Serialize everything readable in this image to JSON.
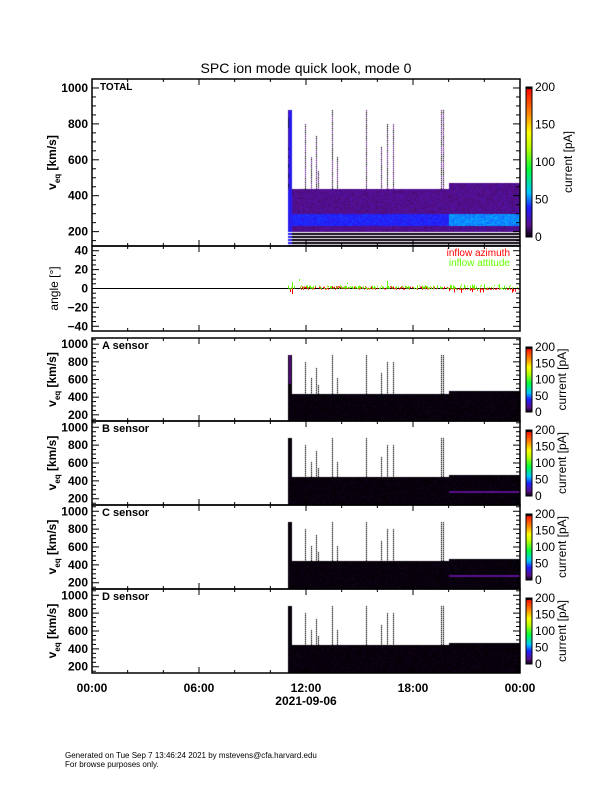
{
  "chart_data": {
    "type": "heatmap",
    "title": "SPC ion mode quick look, mode 0",
    "xaxis": {
      "range_hours": [
        0,
        24
      ],
      "tick_labels": [
        "00:00",
        "06:00",
        "12:00",
        "18:00",
        "00:00"
      ],
      "tick_hours": [
        0,
        6,
        12,
        18,
        24
      ],
      "label": "2021-09-06"
    },
    "data_start_hour": 11.0,
    "spikes": [
      {
        "t": 11.0,
        "vmax": 875
      },
      {
        "t": 11.94,
        "vmax": 800
      },
      {
        "t": 12.28,
        "vmax": 615
      },
      {
        "t": 12.56,
        "vmax": 735
      },
      {
        "t": 12.67,
        "vmax": 540
      },
      {
        "t": 13.46,
        "vmax": 875
      },
      {
        "t": 13.74,
        "vmax": 615
      },
      {
        "t": 15.36,
        "vmax": 875
      },
      {
        "t": 16.2,
        "vmax": 670
      },
      {
        "t": 16.54,
        "vmax": 800
      },
      {
        "t": 16.88,
        "vmax": 800
      },
      {
        "t": 19.57,
        "vmax": 875
      },
      {
        "t": 19.68,
        "vmax": 875
      }
    ],
    "colorbar": {
      "label": "current [pA]",
      "range": [
        0,
        200
      ],
      "ticks": [
        0,
        50,
        100,
        150,
        200
      ],
      "tick_labels": [
        "0",
        "50",
        "100",
        "150",
        "200"
      ]
    },
    "spectrogram_panels": [
      {
        "id": "total",
        "label": "TOTAL",
        "ylim": [
          120,
          1050
        ],
        "yticks": [
          200,
          400,
          600,
          800,
          1000
        ],
        "ytick_labels": [
          "200",
          "400",
          "600",
          "800",
          "1000"
        ],
        "ylabel_main": "v",
        "ylabel_sub": "eq",
        "ylabel_unit": "[km/s]"
      },
      {
        "id": "a",
        "label": "A sensor",
        "ylim": [
          130,
          1070
        ],
        "yticks": [
          200,
          400,
          600,
          800,
          1000
        ],
        "ytick_labels": [
          "200",
          "400",
          "600",
          "800",
          "1000"
        ],
        "ylabel_main": "v",
        "ylabel_sub": "eq",
        "ylabel_unit": "[km/s]"
      },
      {
        "id": "b",
        "label": "B sensor",
        "ylim": [
          130,
          1070
        ],
        "yticks": [
          200,
          400,
          600,
          800,
          1000
        ],
        "ytick_labels": [
          "200",
          "400",
          "600",
          "800",
          "1000"
        ],
        "ylabel_main": "v",
        "ylabel_sub": "eq",
        "ylabel_unit": "[km/s]"
      },
      {
        "id": "c",
        "label": "C sensor",
        "ylim": [
          130,
          1070
        ],
        "yticks": [
          200,
          400,
          600,
          800,
          1000
        ],
        "ytick_labels": [
          "200",
          "400",
          "600",
          "800",
          "1000"
        ],
        "ylabel_main": "v",
        "ylabel_sub": "eq",
        "ylabel_unit": "[km/s]"
      },
      {
        "id": "d",
        "label": "D sensor",
        "ylim": [
          130,
          1070
        ],
        "yticks": [
          200,
          400,
          600,
          800,
          1000
        ],
        "ytick_labels": [
          "200",
          "400",
          "600",
          "800",
          "1000"
        ],
        "ylabel_main": "v",
        "ylabel_sub": "eq",
        "ylabel_unit": "[km/s]"
      }
    ],
    "angle_panel": {
      "ylabel": "angle [°]",
      "ylim": [
        -45,
        45
      ],
      "yticks": [
        -40,
        -20,
        0,
        20,
        40
      ],
      "ytick_labels": [
        "−40",
        "−20",
        "0",
        "20",
        "40"
      ],
      "series": [
        {
          "name": "inflow azimuth",
          "color": "#ff0000"
        },
        {
          "name": "inflow attitude",
          "color": "#66ff00"
        }
      ],
      "legend_position": "top-right"
    }
  },
  "footer": {
    "line1": "Generated on Tue Sep  7 13:46:24 2021 by mstevens@cfa.harvard.edu",
    "line2": "For browse purposes only."
  }
}
